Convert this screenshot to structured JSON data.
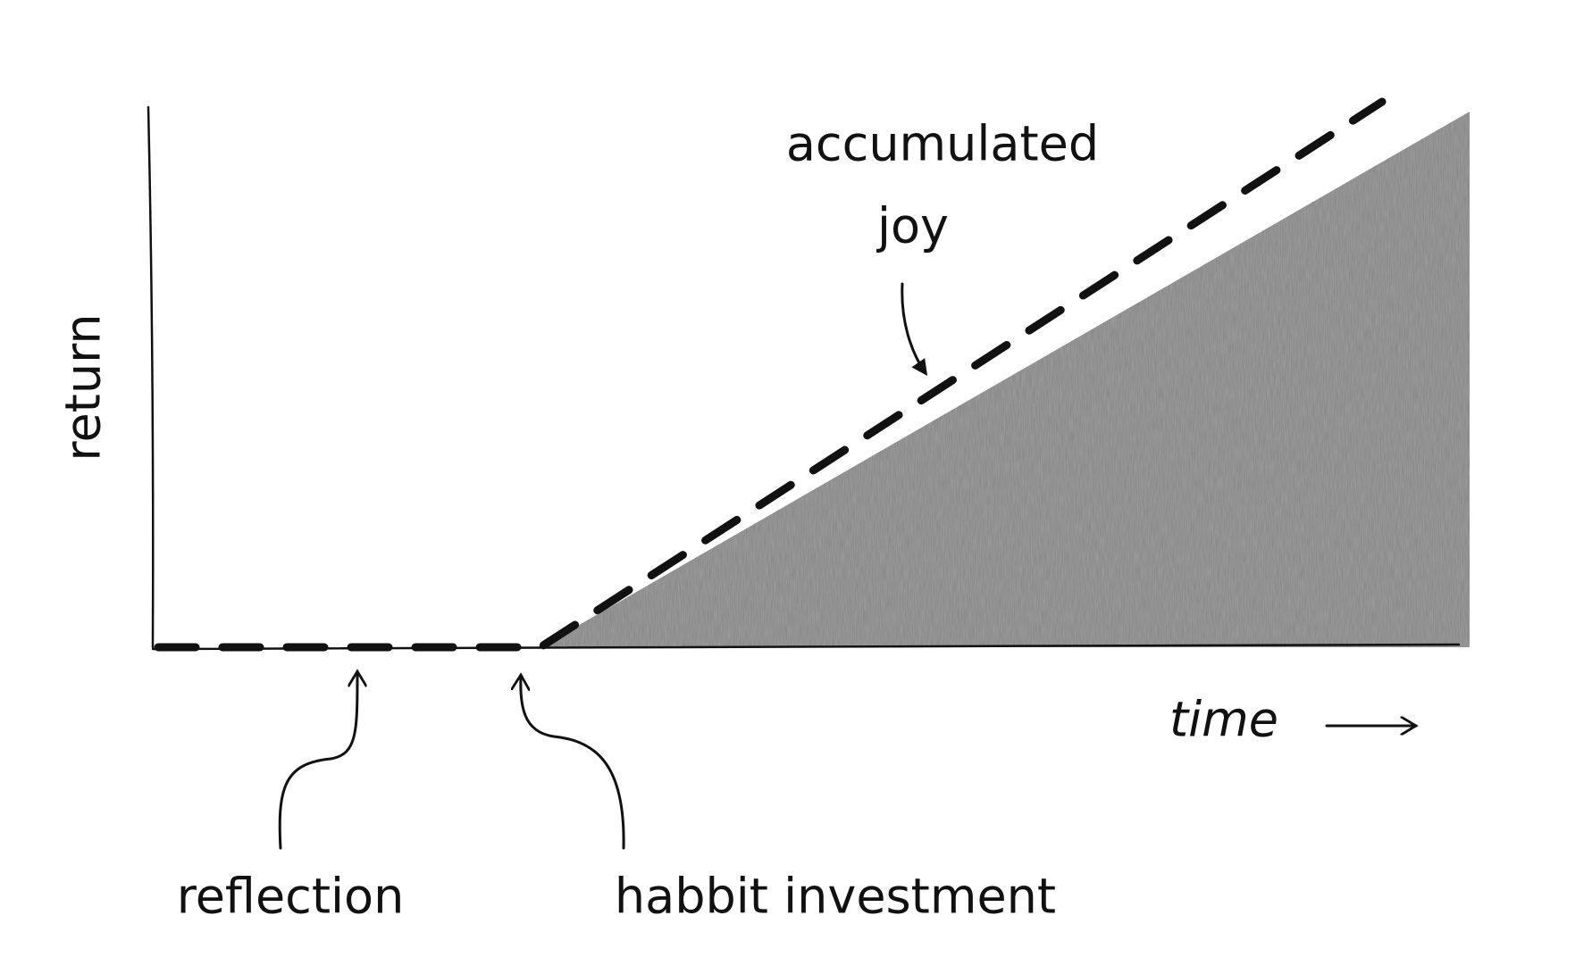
{
  "axes": {
    "y_label": "return",
    "x_label": "time"
  },
  "annotations": {
    "curve_label": [
      "accumulated",
      "joy"
    ],
    "left_marker": "reflection",
    "right_marker": "habbit investment"
  }
}
